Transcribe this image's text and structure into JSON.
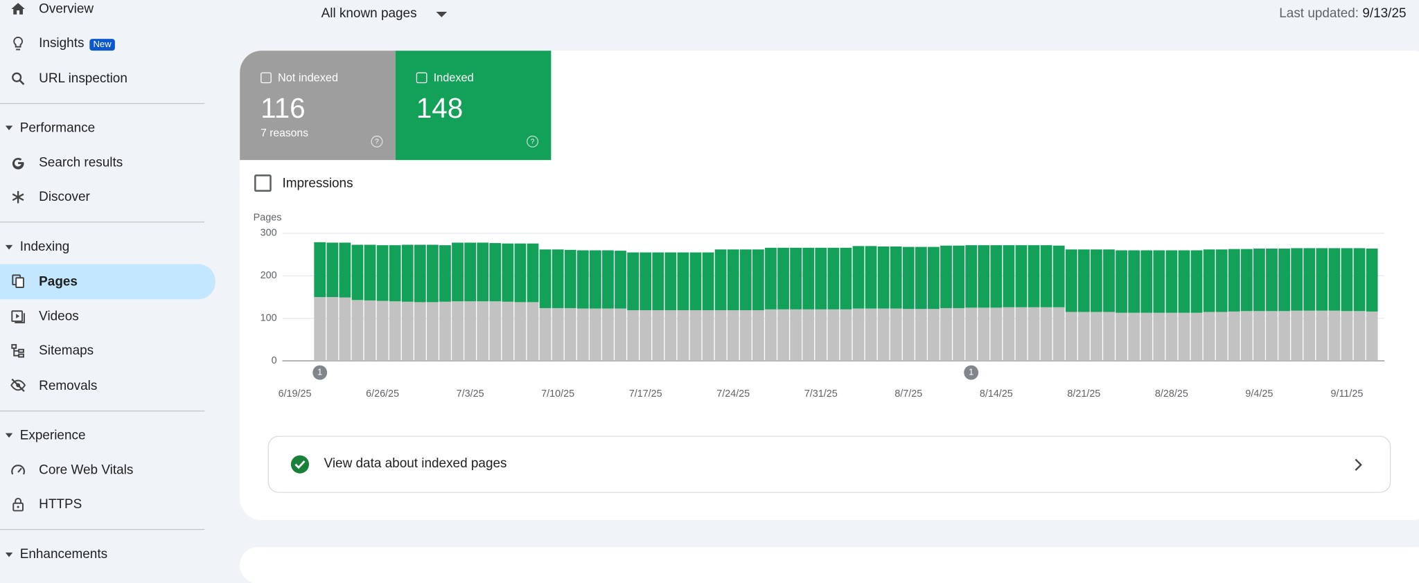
{
  "nav": {
    "items": [
      {
        "label": "Overview"
      },
      {
        "label": "Insights",
        "badge": "New"
      },
      {
        "label": "URL inspection"
      }
    ],
    "sections": [
      {
        "title": "Performance",
        "items": [
          {
            "label": "Search results"
          },
          {
            "label": "Discover"
          }
        ]
      },
      {
        "title": "Indexing",
        "items": [
          {
            "label": "Pages",
            "selected": true
          },
          {
            "label": "Videos"
          },
          {
            "label": "Sitemaps"
          },
          {
            "label": "Removals"
          }
        ]
      },
      {
        "title": "Experience",
        "items": [
          {
            "label": "Core Web Vitals"
          },
          {
            "label": "HTTPS"
          }
        ]
      },
      {
        "title": "Enhancements"
      }
    ]
  },
  "header": {
    "filter": "All known pages",
    "last_updated_label": "Last updated:",
    "last_updated": "9/13/25"
  },
  "cards": [
    {
      "value": 116,
      "note": "7 reasons"
    },
    {
      "value": 148
    }
  ],
  "checkbox": "Impressions",
  "link": "View data about indexed pages",
  "chart_data": {
    "type": "stacked-bar",
    "y_label": "Pages",
    "x": [
      "6/21/25",
      "6/22/25",
      "6/23/25",
      "6/24/25",
      "6/25/25",
      "6/26/25",
      "6/27/25",
      "6/28/25",
      "6/29/25",
      "6/30/25",
      "7/1/25",
      "7/2/25",
      "7/3/25",
      "7/4/25",
      "7/5/25",
      "7/6/25",
      "7/7/25",
      "7/8/25",
      "7/9/25",
      "7/10/25",
      "7/11/25",
      "7/12/25",
      "7/13/25",
      "7/14/25",
      "7/15/25",
      "7/16/25",
      "7/17/25",
      "7/18/25",
      "7/19/25",
      "7/20/25",
      "7/21/25",
      "7/22/25",
      "7/23/25",
      "7/24/25",
      "7/25/25",
      "7/26/25",
      "7/27/25",
      "7/28/25",
      "7/29/25",
      "7/30/25",
      "7/31/25",
      "8/1/25",
      "8/2/25",
      "8/3/25",
      "8/4/25",
      "8/5/25",
      "8/6/25",
      "8/7/25",
      "8/8/25",
      "8/9/25",
      "8/10/25",
      "8/11/25",
      "8/12/25",
      "8/13/25",
      "8/14/25",
      "8/15/25",
      "8/16/25",
      "8/17/25",
      "8/18/25",
      "8/19/25",
      "8/20/25",
      "8/21/25",
      "8/22/25",
      "8/23/25",
      "8/24/25",
      "8/25/25",
      "8/26/25",
      "8/27/25",
      "8/28/25",
      "8/29/25",
      "8/30/25",
      "8/31/25",
      "9/1/25",
      "9/2/25",
      "9/3/25",
      "9/4/25",
      "9/5/25",
      "9/6/25",
      "9/7/25",
      "9/8/25",
      "9/9/25",
      "9/10/25",
      "9/11/25",
      "9/12/25",
      "9/13/25"
    ],
    "series": [
      {
        "name": "Not indexed",
        "color": "#c2c2c2",
        "values": [
          150,
          150,
          149,
          143,
          142,
          141,
          140,
          139,
          138,
          138,
          139,
          140,
          140,
          140,
          140,
          139,
          138,
          138,
          124,
          124,
          124,
          123,
          123,
          123,
          123,
          119,
          119,
          119,
          119,
          119,
          119,
          119,
          119,
          119,
          119,
          119,
          121,
          121,
          121,
          121,
          121,
          121,
          121,
          123,
          123,
          123,
          123,
          122,
          122,
          122,
          124,
          124,
          125,
          125,
          125,
          126,
          126,
          126,
          126,
          126,
          115,
          115,
          115,
          115,
          113,
          113,
          113,
          113,
          113,
          113,
          113,
          115,
          115,
          116,
          117,
          117,
          117,
          117,
          118,
          118,
          118,
          118,
          117,
          117,
          116
        ]
      },
      {
        "name": "Indexed",
        "color": "#13a058",
        "values": [
          129,
          128,
          129,
          130,
          131,
          131,
          132,
          134,
          135,
          135,
          133,
          138,
          138,
          138,
          137,
          137,
          138,
          138,
          138,
          138,
          137,
          137,
          137,
          137,
          136,
          136,
          136,
          136,
          136,
          136,
          136,
          136,
          143,
          143,
          143,
          143,
          145,
          145,
          145,
          145,
          145,
          145,
          145,
          147,
          147,
          146,
          146,
          146,
          146,
          146,
          147,
          147,
          147,
          147,
          147,
          146,
          146,
          146,
          146,
          145,
          147,
          147,
          147,
          147,
          147,
          147,
          147,
          147,
          147,
          147,
          147,
          147,
          147,
          147,
          146,
          147,
          147,
          147,
          147,
          147,
          147,
          147,
          148,
          148,
          148
        ]
      }
    ],
    "xlim": [
      "6/18/25",
      "9/14/25"
    ],
    "xticks": [
      "6/19/25",
      "6/26/25",
      "7/3/25",
      "7/10/25",
      "7/17/25",
      "7/24/25",
      "7/31/25",
      "8/7/25",
      "8/14/25",
      "8/21/25",
      "8/28/25",
      "9/4/25",
      "9/11/25"
    ],
    "ylim": [
      0,
      300
    ],
    "yticks": [
      0,
      100,
      200,
      300
    ],
    "grid": true,
    "annotations": [
      {
        "x": "6/21/25",
        "label": "1"
      },
      {
        "x": "8/12/25",
        "label": "1"
      }
    ]
  }
}
